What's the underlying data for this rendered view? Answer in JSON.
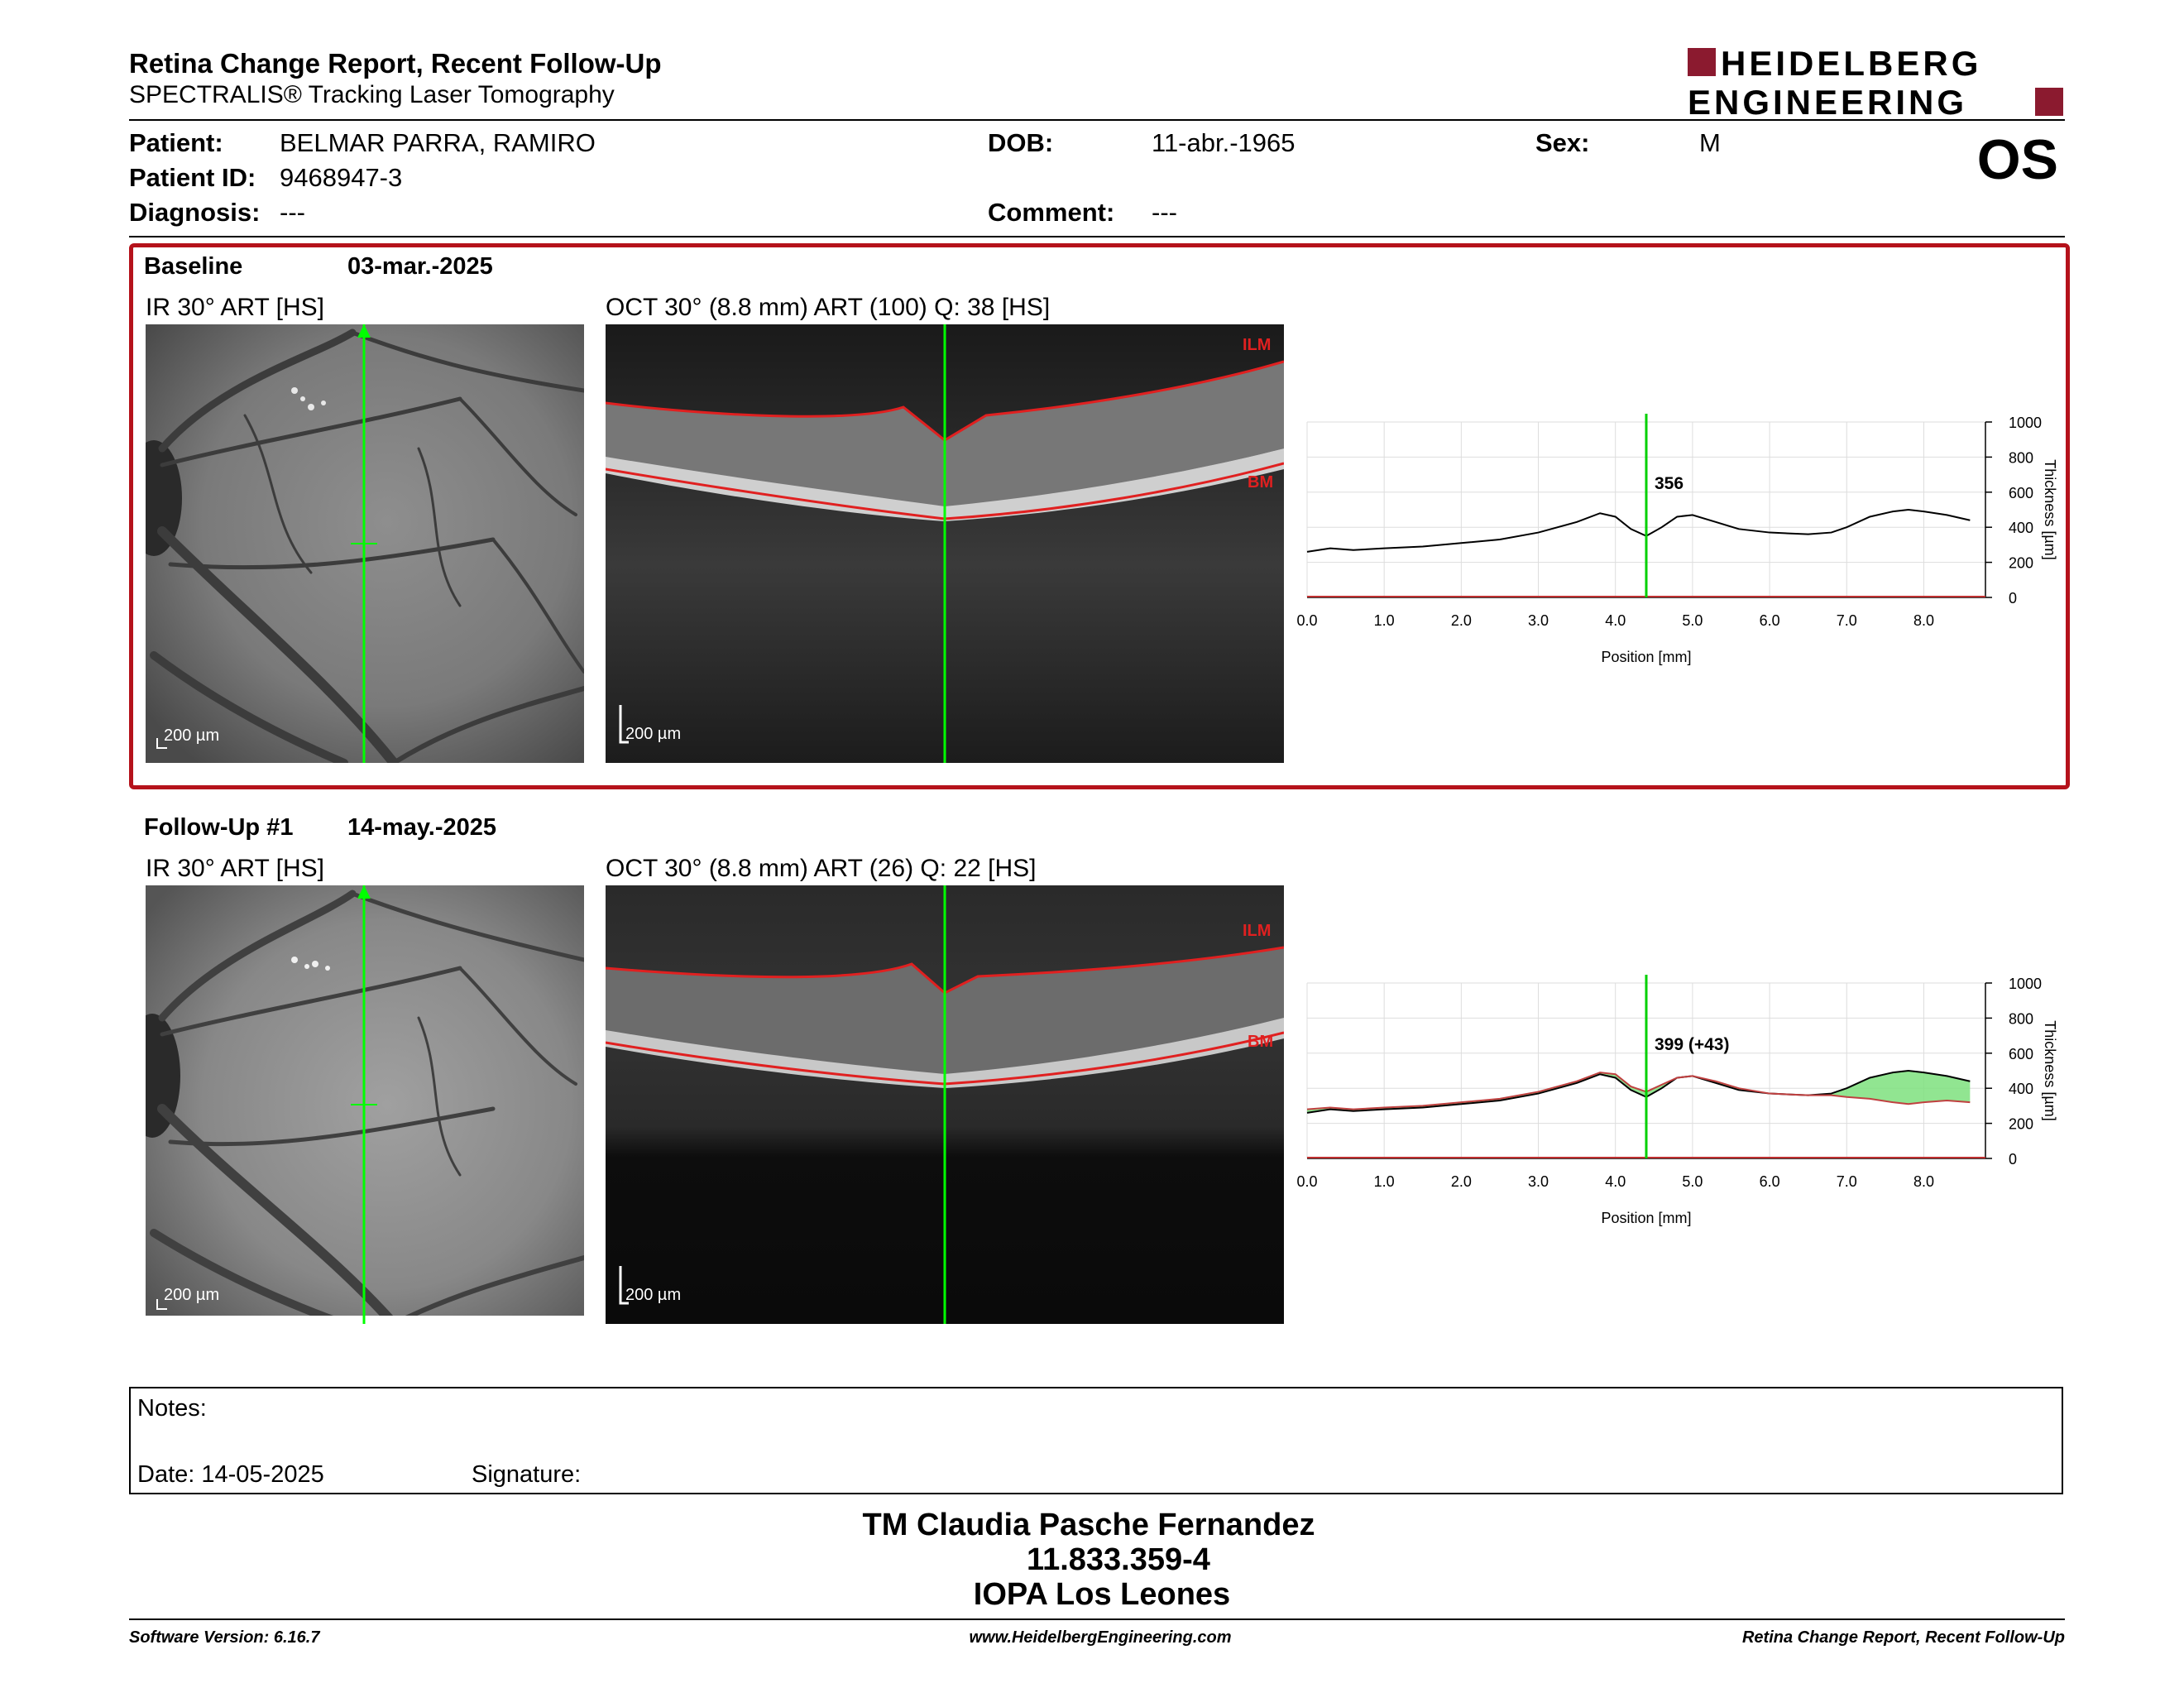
{
  "report": {
    "title": "Retina Change Report, Recent Follow-Up",
    "subtitle": "SPECTRALIS® Tracking Laser Tomography",
    "eye": "OS"
  },
  "logo": {
    "line1": "HEIDELBERG",
    "line2": "ENGINEERING",
    "brand_color": "#8b1a2f"
  },
  "patient": {
    "patient_label": "Patient:",
    "patient_value": "BELMAR PARRA, RAMIRO",
    "id_label": "Patient ID:",
    "id_value": "9468947-3",
    "diagnosis_label": "Diagnosis:",
    "diagnosis_value": "---",
    "dob_label": "DOB:",
    "dob_value": "11-abr.-1965",
    "comment_label": "Comment:",
    "comment_value": "---",
    "sex_label": "Sex:",
    "sex_value": "M"
  },
  "baseline": {
    "label": "Baseline",
    "date": "03-mar.-2025",
    "ir_caption": "IR 30° ART [HS]",
    "oct_caption": "OCT 30° (8.8 mm) ART (100) Q: 38 [HS]",
    "scale_ir": "200 µm",
    "scale_oct": "200 µm",
    "ilm": "ILM",
    "bm": "BM",
    "cursor_value": "356",
    "box_color": "#b5121b"
  },
  "followup": {
    "label": "Follow-Up #1",
    "date": "14-may.-2025",
    "ir_caption": "IR 30° ART [HS]",
    "oct_caption": "OCT 30° (8.8 mm) ART (26) Q: 22 [HS]",
    "scale_ir": "200 µm",
    "scale_oct": "200 µm",
    "ilm": "ILM",
    "bm": "BM",
    "cursor_value": "399 (+43)"
  },
  "chart_data": [
    {
      "type": "line",
      "xlabel": "Position [mm]",
      "ylabel": "Thickness [µm]",
      "xticks": [
        "0.0",
        "1.0",
        "2.0",
        "3.0",
        "4.0",
        "5.0",
        "6.0",
        "7.0",
        "8.0"
      ],
      "yticks": [
        "0",
        "200",
        "400",
        "600",
        "800",
        "1000"
      ],
      "xlim": [
        0,
        8.8
      ],
      "ylim": [
        0,
        1000
      ],
      "cursor_x": 4.4,
      "series": [
        {
          "x": [
            0,
            0.3,
            0.6,
            1.0,
            1.5,
            2.0,
            2.5,
            3.0,
            3.5,
            3.8,
            4.0,
            4.2,
            4.4,
            4.6,
            4.8,
            5.0,
            5.3,
            5.6,
            6.0,
            6.5,
            6.8,
            7.0,
            7.3,
            7.6,
            7.8,
            8.0,
            8.3,
            8.6
          ],
          "y": [
            260,
            280,
            270,
            280,
            290,
            310,
            330,
            370,
            430,
            480,
            460,
            390,
            350,
            400,
            460,
            470,
            430,
            390,
            370,
            360,
            370,
            400,
            460,
            490,
            500,
            490,
            470,
            440
          ]
        }
      ]
    },
    {
      "type": "line",
      "xlabel": "Position [mm]",
      "ylabel": "Thickness [µm]",
      "xticks": [
        "0.0",
        "1.0",
        "2.0",
        "3.0",
        "4.0",
        "5.0",
        "6.0",
        "7.0",
        "8.0"
      ],
      "yticks": [
        "0",
        "200",
        "400",
        "600",
        "800",
        "1000"
      ],
      "xlim": [
        0,
        8.8
      ],
      "ylim": [
        0,
        1000
      ],
      "cursor_x": 4.4,
      "series": [
        {
          "x": [
            0,
            0.3,
            0.6,
            1.0,
            1.5,
            2.0,
            2.5,
            3.0,
            3.5,
            3.8,
            4.0,
            4.2,
            4.4,
            4.6,
            4.8,
            5.0,
            5.3,
            5.6,
            6.0,
            6.5,
            6.8,
            7.0,
            7.3,
            7.6,
            7.8,
            8.0,
            8.3,
            8.6
          ],
          "y": [
            280,
            290,
            280,
            290,
            300,
            320,
            340,
            380,
            440,
            490,
            480,
            410,
            380,
            420,
            460,
            470,
            440,
            400,
            370,
            360,
            360,
            350,
            340,
            320,
            310,
            320,
            330,
            320
          ]
        },
        {
          "x": [
            0,
            0.3,
            0.6,
            1.0,
            1.5,
            2.0,
            2.5,
            3.0,
            3.5,
            3.8,
            4.0,
            4.2,
            4.4,
            4.6,
            4.8,
            5.0,
            5.3,
            5.6,
            6.0,
            6.5,
            6.8,
            7.0,
            7.3,
            7.6,
            7.8,
            8.0,
            8.3,
            8.6
          ],
          "y": [
            260,
            280,
            270,
            280,
            290,
            310,
            330,
            370,
            430,
            480,
            460,
            390,
            350,
            400,
            460,
            470,
            430,
            390,
            370,
            360,
            370,
            400,
            460,
            490,
            500,
            490,
            470,
            440
          ]
        }
      ]
    }
  ],
  "notes": {
    "notes_label": "Notes:",
    "date_label": "Date: 14-05-2025",
    "signature_label": "Signature:"
  },
  "signer": {
    "name": "TM Claudia Pasche Fernandez",
    "id": "11.833.359-4",
    "place": "IOPA Los Leones"
  },
  "footer": {
    "software": "Software Version: 6.16.7",
    "website": "www.HeidelbergEngineering.com",
    "report_name": "Retina Change Report, Recent Follow-Up"
  }
}
